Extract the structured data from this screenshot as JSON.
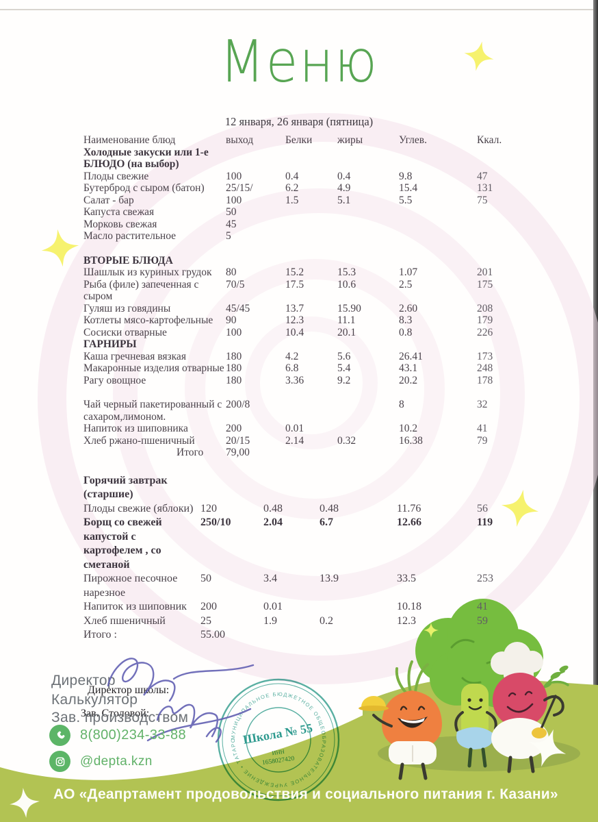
{
  "page": {
    "title": "Меню",
    "date_line": "12 января, 26 января (пятница)"
  },
  "colors": {
    "title_green": "#58a553",
    "footer_band": "#b2c353",
    "contact_green": "#5cb567",
    "stamp_teal": "#38a093",
    "ink_blue": "#5e5cb0",
    "sparkle_yellow": "#f6f26e"
  },
  "table": {
    "sections": [
      {
        "font_size": 15.5,
        "line_height": 17.5,
        "name_width": 212,
        "offsets": [
          0,
          208,
          295,
          371,
          461,
          575
        ],
        "rows": [
          {
            "type": "colhead",
            "cells": [
              "Наименование блюд",
              "выход",
              "Белки",
              "жиры",
              "Углев.",
              "Ккал."
            ]
          },
          {
            "type": "section",
            "name": "Холодные закуски или 1-е\nБЛЮДО  (на выбор)"
          },
          {
            "type": "item",
            "name": "Плоды свежие",
            "out": "100",
            "protein": "0.4",
            "fat": "0.4",
            "carb": "9.8",
            "kcal": "47"
          },
          {
            "type": "item",
            "name": "Бутерброд с сыром (батон)",
            "out": "25/15/",
            "protein": "6.2",
            "fat": "4.9",
            "carb": "15.4",
            "kcal": "131"
          },
          {
            "type": "item",
            "name": "Салат - бар",
            "out": "100",
            "protein": "1.5",
            "fat": "5.1",
            "carb": "5.5",
            "kcal": "75"
          },
          {
            "type": "item",
            "name": "Капуста свежая",
            "out": "50"
          },
          {
            "type": "item",
            "name": "Морковь свежая",
            "out": "45"
          },
          {
            "type": "item",
            "name": "Масло растительное",
            "out": "5"
          },
          {
            "type": "spacer",
            "h": 18
          },
          {
            "type": "section",
            "name": "ВТОРЫЕ БЛЮДА"
          },
          {
            "type": "item",
            "name": "Шашлык из куриных грудок",
            "out": "80",
            "protein": "15.2",
            "fat": "15.3",
            "carb": "1.07",
            "kcal": "201"
          },
          {
            "type": "item",
            "name": "Рыба (филе) запеченная  с\nсыром",
            "out": "70/5",
            "protein": "17.5",
            "fat": "10.6",
            "carb": "2.5",
            "kcal": "175"
          },
          {
            "type": "item",
            "name": "Гуляш из говядины",
            "out": "45/45",
            "protein": "13.7",
            "fat": "15.90",
            "carb": "2.60",
            "kcal": "208"
          },
          {
            "type": "item",
            "name": "Котлеты мясо-картофельные",
            "out": "90",
            "protein": "12.3",
            "fat": "11.1",
            "carb": "8.3",
            "kcal": "179"
          },
          {
            "type": "item",
            "name": "Сосиски отварные",
            "out": "100",
            "protein": "10.4",
            "fat": "20.1",
            "carb": "0.8",
            "kcal": "226"
          },
          {
            "type": "section",
            "name": "ГАРНИРЫ"
          },
          {
            "type": "item",
            "name": "Каша гречневая вязкая",
            "out": "180",
            "protein": "4.2",
            "fat": "5.6",
            "carb": "26.41",
            "kcal": "173"
          },
          {
            "type": "item",
            "name": "Макаронные изделия отварные",
            "out": "180",
            "protein": "6.8",
            "fat": "5.4",
            "carb": "43.1",
            "kcal": "248"
          },
          {
            "type": "item",
            "name": "Рагу овощное",
            "out": "180",
            "protein": "3.36",
            "fat": "9.2",
            "carb": "20.2",
            "kcal": "178"
          },
          {
            "type": "spacer",
            "h": 18
          },
          {
            "type": "item",
            "name": "Чай черный пакетированный с\nсахаром,лимоном.",
            "out": "200/8",
            "carb": "8",
            "kcal": "32"
          },
          {
            "type": "item",
            "name": "Напиток из шиповника",
            "out": "200",
            "protein": "0.01",
            "carb": "10.2",
            "kcal": "41"
          },
          {
            "type": "item",
            "name": "Хлеб ржано-пшеничный",
            "out": "20/15",
            "protein": "2.14",
            "fat": "0.32",
            "carb": "16.38",
            "kcal": "79"
          },
          {
            "type": "total",
            "label": "Итого",
            "out": "79,00",
            "indent": 136
          }
        ]
      },
      {
        "font_size": 16,
        "line_height": 20.5,
        "name_width": 200,
        "offsets": [
          0,
          171,
          263,
          345,
          458,
          575
        ],
        "top_gap": 22,
        "rows": [
          {
            "type": "section",
            "name": "Горячий завтрак\n(старшие)"
          },
          {
            "type": "item",
            "name": "Плоды свежие (яблоки)",
            "out": "120",
            "protein": "0.48",
            "fat": "0.48",
            "carb": "11.76",
            "kcal": "56"
          },
          {
            "type": "item",
            "strong": true,
            "name": "Борщ  со свежей\nкапустой с\nкартофелем , со\nсметаной",
            "out": "250/10",
            "protein": "2.04",
            "fat": "6.7",
            "carb": "12.66",
            "kcal": "119"
          },
          {
            "type": "item",
            "name": "Пирожное песочное\nнарезное",
            "out": "50",
            "protein": "3.4",
            "fat": "13.9",
            "carb": "33.5",
            "kcal": "253"
          },
          {
            "type": "item",
            "name": "Напиток из шиповник",
            "out": "200",
            "protein": "0.01",
            "carb": "10.18",
            "kcal": "41"
          },
          {
            "type": "item",
            "name": "Хлеб пшеничный",
            "out": "25",
            "protein": "1.9",
            "fat": "0.2",
            "carb": "12.3",
            "kcal": "59"
          },
          {
            "type": "total",
            "label": "Итого :",
            "out": "55.00",
            "indent": 0
          }
        ]
      }
    ]
  },
  "officials": {
    "director_label": "Директор",
    "director_school_label": "Директор школы:",
    "calculator_label": "Калькулятор",
    "zav_stolovoy_label": "Зав. Столовой:",
    "zav_production_label": "Зав. производством"
  },
  "contacts": {
    "phone": "8(800)234-33-88",
    "instagram": "@depta.kzn"
  },
  "stamp": {
    "center_line1": "Школа № 55",
    "inn_label": "ИНН",
    "inn_value": "1658027420",
    "ring_text": "МУНИЦИПАЛЬНОЕ БЮДЖЕТНОЕ ОБЩЕОБРАЗОВАТЕЛЬНОЕ УЧРЕЖДЕНИЕ • ТАТАРСТАН •"
  },
  "footer": {
    "org_line": "АО «Деапртамент продовольствия и социального питания г. Казани»"
  }
}
